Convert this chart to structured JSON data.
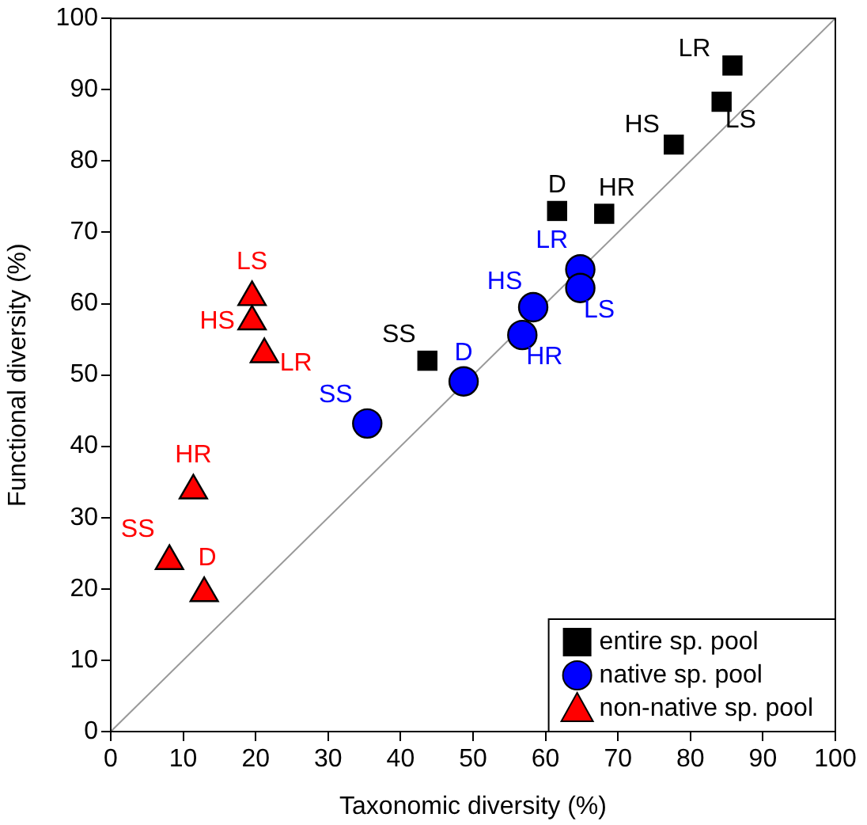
{
  "chart_data": {
    "type": "scatter",
    "xlabel": "Taxonomic diversity (%)",
    "ylabel": "Functional diversity (%)",
    "xlim": [
      0,
      100
    ],
    "ylim": [
      0,
      100
    ],
    "xticks": [
      0,
      10,
      20,
      30,
      40,
      50,
      60,
      70,
      80,
      90,
      100
    ],
    "yticks": [
      0,
      10,
      20,
      30,
      40,
      50,
      60,
      70,
      80,
      90,
      100
    ],
    "grid": false,
    "legend": "bottom right",
    "series": [
      {
        "name": "entire sp. pool",
        "color": "#000000",
        "marker": "square",
        "x": [
          85.8,
          84.3,
          77.7,
          61.6,
          68.1,
          43.7
        ],
        "values": [
          93.4,
          88.3,
          82.3,
          73,
          72.6,
          52
        ]
      },
      {
        "name": "native sp. pool",
        "color": "#0000ff",
        "marker": "circle",
        "x": [
          64.8,
          64.8,
          58.3,
          56.8,
          48.7,
          35.4
        ],
        "values": [
          64.8,
          62.2,
          59.5,
          55.6,
          49.1,
          43.2
        ]
      },
      {
        "name": "non-native sp. pool",
        "color": "#ff0000",
        "marker": "triangle",
        "x": [
          19.5,
          19.5,
          21.2,
          11.4,
          8.1,
          12.9
        ],
        "values": [
          60.9,
          57.5,
          52.9,
          33.8,
          23.9,
          19.4
        ]
      },
      {
        "type": "line",
        "color": "#999999",
        "marker": "none",
        "x": [
          0,
          100
        ],
        "values": [
          0,
          100
        ]
      }
    ],
    "annotations": [
      {
        "text": "LR",
        "x": 85.8,
        "y": 93.4
      },
      {
        "text": "LS",
        "x": 84.3,
        "y": 88.3
      },
      {
        "text": "HS",
        "x": 77.7,
        "y": 82.3
      },
      {
        "text": "D",
        "x": 61.6,
        "y": 73
      },
      {
        "text": "HR",
        "x": 68.1,
        "y": 72.6
      },
      {
        "text": "SS",
        "x": 43.7,
        "y": 52
      },
      {
        "text": "LR",
        "x": 64.8,
        "y": 64.8
      },
      {
        "text": "LS",
        "x": 64.8,
        "y": 62.2
      },
      {
        "text": "HS",
        "x": 58.3,
        "y": 59.5
      },
      {
        "text": "HR",
        "x": 56.8,
        "y": 55.6
      },
      {
        "text": "D",
        "x": 48.7,
        "y": 49.1
      },
      {
        "text": "SS",
        "x": 35.4,
        "y": 43.2
      },
      {
        "text": "LS",
        "x": 19.5,
        "y": 60.9
      },
      {
        "text": "HS",
        "x": 19.5,
        "y": 57.5
      },
      {
        "text": "LR",
        "x": 21.2,
        "y": 52.9
      },
      {
        "text": "HR",
        "x": 11.4,
        "y": 33.8
      },
      {
        "text": "SS",
        "x": 8.1,
        "y": 23.9
      },
      {
        "text": "D",
        "x": 12.9,
        "y": 19.4
      }
    ]
  }
}
